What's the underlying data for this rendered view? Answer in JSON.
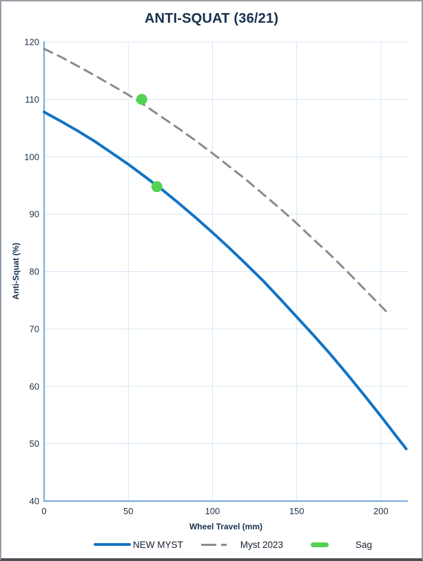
{
  "chart_data": {
    "type": "line",
    "title": "ANTI-SQUAT (36/21)",
    "xlabel": "Wheel Travel (mm)",
    "ylabel": "Anti-Squat (%)",
    "xlim": [
      0,
      216
    ],
    "ylim": [
      40,
      120
    ],
    "x_ticks": [
      0,
      50,
      100,
      150,
      200
    ],
    "y_ticks": [
      40,
      50,
      60,
      70,
      80,
      90,
      100,
      110,
      120
    ],
    "grid": true,
    "legend_position": "bottom-center",
    "colors": {
      "grid": "#d6e6f4",
      "axis": "#74a9d9",
      "title": "#16304d",
      "tick_text": "#1b2f45"
    },
    "series": [
      {
        "name": "NEW MYST",
        "style": "solid",
        "color": "#1273c4",
        "width": 4,
        "points": [
          [
            0,
            107.8
          ],
          [
            10,
            106.2
          ],
          [
            20,
            104.5
          ],
          [
            30,
            102.7
          ],
          [
            40,
            100.7
          ],
          [
            50,
            98.7
          ],
          [
            60,
            96.5
          ],
          [
            70,
            94.3
          ],
          [
            80,
            91.9
          ],
          [
            90,
            89.4
          ],
          [
            100,
            86.8
          ],
          [
            110,
            84.1
          ],
          [
            120,
            81.3
          ],
          [
            130,
            78.4
          ],
          [
            140,
            75.3
          ],
          [
            150,
            72.1
          ],
          [
            160,
            68.9
          ],
          [
            170,
            65.6
          ],
          [
            180,
            62.1
          ],
          [
            190,
            58.5
          ],
          [
            200,
            54.8
          ],
          [
            210,
            51.0
          ],
          [
            215,
            49.1
          ]
        ]
      },
      {
        "name": "Myst 2023",
        "style": "dashed",
        "color": "#8a8a8a",
        "width": 3,
        "points": [
          [
            0,
            118.8
          ],
          [
            10,
            117.4
          ],
          [
            20,
            115.8
          ],
          [
            30,
            114.2
          ],
          [
            40,
            112.5
          ],
          [
            50,
            110.8
          ],
          [
            60,
            108.9
          ],
          [
            70,
            106.9
          ],
          [
            80,
            104.9
          ],
          [
            90,
            102.8
          ],
          [
            100,
            100.6
          ],
          [
            110,
            98.3
          ],
          [
            120,
            96.0
          ],
          [
            130,
            93.5
          ],
          [
            140,
            91.0
          ],
          [
            150,
            88.4
          ],
          [
            160,
            85.6
          ],
          [
            170,
            82.9
          ],
          [
            180,
            80.0
          ],
          [
            190,
            77.0
          ],
          [
            200,
            74.0
          ],
          [
            204,
            72.8
          ]
        ]
      }
    ],
    "markers": {
      "name": "Sag",
      "color": "#53d253",
      "radius": 8,
      "points": [
        {
          "series": "Myst 2023",
          "x": 58,
          "y": 110.0
        },
        {
          "series": "NEW MYST",
          "x": 67,
          "y": 94.8
        }
      ]
    }
  }
}
